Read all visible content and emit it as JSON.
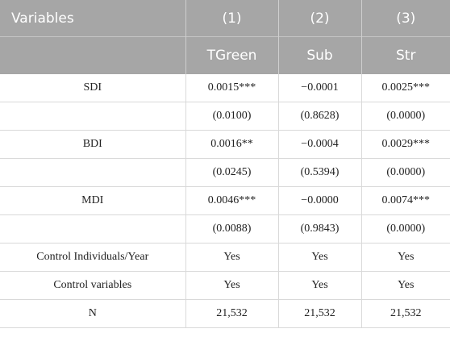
{
  "table": {
    "header_row1": [
      "Variables",
      "(1)",
      "(2)",
      "(3)"
    ],
    "header_row2": [
      "",
      "TGreen",
      "Sub",
      "Str"
    ],
    "rows": [
      [
        "SDI",
        "0.0015***",
        "−0.0001",
        "0.0025***"
      ],
      [
        "",
        "(0.0100)",
        "(0.8628)",
        "(0.0000)"
      ],
      [
        "BDI",
        "0.0016**",
        "−0.0004",
        "0.0029***"
      ],
      [
        "",
        "(0.0245)",
        "(0.5394)",
        "(0.0000)"
      ],
      [
        "MDI",
        "0.0046***",
        "−0.0000",
        "0.0074***"
      ],
      [
        "",
        "(0.0088)",
        "(0.9843)",
        "(0.0000)"
      ],
      [
        "Control Individuals/Year",
        "Yes",
        "Yes",
        "Yes"
      ],
      [
        "Control variables",
        "Yes",
        "Yes",
        "Yes"
      ],
      [
        "N",
        "21,532",
        "21,532",
        "21,532"
      ]
    ]
  },
  "colors": {
    "header_bg": "#a6a6a6",
    "header_text": "#ffffff",
    "grid": "#d9d9d9"
  }
}
